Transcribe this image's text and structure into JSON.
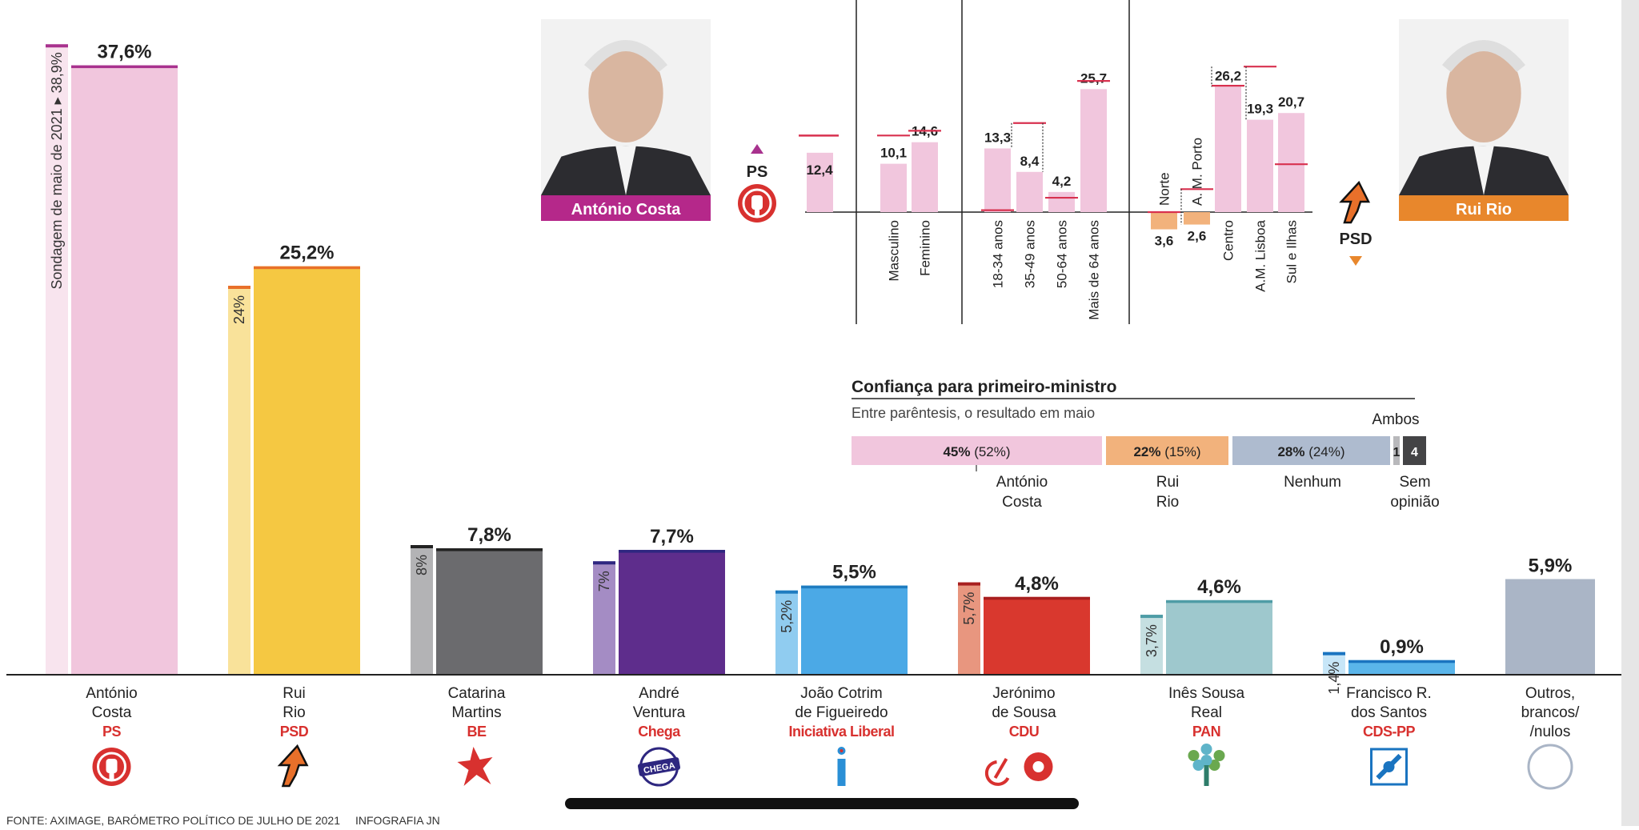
{
  "chart_data": [
    {
      "type": "bar",
      "categories": [
        "António Costa",
        "Rui Rio",
        "Catarina Martins",
        "André Ventura",
        "João Cotrim de Figueiredo",
        "Jerónimo de Sousa",
        "Inês Sousa Real",
        "Francisco R. dos Santos",
        "Outros, brancos/ /nulos"
      ],
      "series": [
        {
          "values": [
            37.6,
            25.2,
            7.8,
            7.7,
            5.5,
            4.8,
            4.6,
            0.9,
            5.9
          ]
        },
        {
          "values": [
            38.9,
            24,
            8,
            7,
            5.2,
            5.7,
            3.7,
            1.4,
            null
          ]
        }
      ],
      "value_labels": [
        "37,6%",
        "25,2%",
        "7,8%",
        "7,7%",
        "5,5%",
        "4,8%",
        "4,6%",
        "0,9%",
        "5,9%"
      ],
      "previous_labels": [
        "Sondagem de maio de 2021 ▸ 38,9%",
        "24%",
        "8%",
        "7%",
        "5,2%",
        "5,7%",
        "3,7%",
        "1,4%",
        ""
      ],
      "ylim": [
        0,
        40
      ],
      "candidates": [
        {
          "name": "António\nCosta",
          "party": "PS",
          "color": "#f1c6dd",
          "prev_color": "#f8e4ee",
          "line_color": "#a8328e",
          "logo": "ps-fist-icon"
        },
        {
          "name": "Rui\nRio",
          "party": "PSD",
          "color": "#f5c842",
          "prev_color": "#f9e29a",
          "line_color": "#e8702a",
          "logo": "psd-arrow-icon"
        },
        {
          "name": "Catarina\nMartins",
          "party": "BE",
          "color": "#6b6b6e",
          "prev_color": "#b3b3b5",
          "line_color": "#222222",
          "logo": "be-star-icon"
        },
        {
          "name": "André\nVentura",
          "party": "Chega",
          "color": "#5e2d8c",
          "prev_color": "#a48cc4",
          "line_color": "#2e2780",
          "logo": "chega-badge-icon"
        },
        {
          "name": "João Cotrim\nde Figueiredo",
          "party": "Iniciativa Liberal",
          "color": "#4ba9e6",
          "prev_color": "#90ccf0",
          "line_color": "#1f7cc0",
          "logo": "il-icon"
        },
        {
          "name": "Jerónimo\nde Sousa",
          "party": "CDU",
          "color": "#d9382e",
          "prev_color": "#e8967f",
          "line_color": "#a81f1f",
          "logo": "cdu-hammer-sickle-icon"
        },
        {
          "name": "Inês Sousa\nReal",
          "party": "PAN",
          "color": "#9ec8cd",
          "prev_color": "#c5dfe1",
          "line_color": "#4e9ca6",
          "logo": "pan-tree-icon"
        },
        {
          "name": "Francisco R.\ndos Santos",
          "party": "CDS-PP",
          "color": "#5ab5ea",
          "prev_color": "#c7e6f8",
          "line_color": "#1a74c0",
          "logo": "cds-icon"
        },
        {
          "name": "Outros,\nbrancos/\n/nulos",
          "party": "",
          "color": "#aab5c6",
          "prev_color": "#aab5c6",
          "line_color": "#aab5c6",
          "logo": "others-circle-icon"
        }
      ]
    },
    {
      "type": "bar",
      "categories": [
        "Masculino",
        "Feminino",
        "18-34 anos",
        "35-49 anos",
        "50-64 anos",
        "Mais de 64 anos",
        "Norte",
        "A. M. Porto",
        "Centro",
        "A.M. Lisboa",
        "Sul e Ilhas"
      ],
      "overall_value": 12.4,
      "values": [
        10.1,
        14.6,
        13.3,
        8.4,
        4.2,
        25.7,
        -3.6,
        -2.6,
        26.2,
        19.3,
        20.7
      ],
      "value_labels": [
        "10,1",
        "14,6",
        "13,3",
        "8,4",
        "4,2",
        "25,7",
        "3,6",
        "2,6",
        "26,2",
        "19,3",
        "20,7"
      ],
      "overall_label": "12,4",
      "left": {
        "party": "PS",
        "name": "António Costa",
        "photo": "antonio-costa-portrait"
      },
      "right": {
        "party": "PSD",
        "name": "Rui Rio",
        "photo": "rui-rio-portrait"
      }
    },
    {
      "type": "bar",
      "orientation": "horizontal-stacked",
      "title": "Confiança para primeiro-ministro",
      "subtitle": "Entre parêntesis, o resultado em maio",
      "segments": [
        {
          "label": "António\nCosta",
          "value": 45,
          "previous": 52,
          "text_main": "45%",
          "text_prev": " (52%)",
          "color": "#f1c6dd"
        },
        {
          "label": "Rui\nRio",
          "value": 22,
          "previous": 15,
          "text_main": "22%",
          "text_prev": " (15%)",
          "color": "#f2b27c"
        },
        {
          "label": "Nenhum",
          "value": 28,
          "previous": 24,
          "text_main": "28%",
          "text_prev": " (24%)",
          "color": "#aebbcf"
        },
        {
          "label": "Ambos",
          "value": 1,
          "text_main": "1",
          "color": "#b8b8bb"
        },
        {
          "label": "Sem\nopinião",
          "value": 4,
          "text_main": "4",
          "color": "#444446"
        }
      ]
    }
  ],
  "footer": {
    "source": "FONTE: AXIMAGE, BARÓMETRO POLÍTICO DE JULHO DE 2021",
    "credit": "INFOGRAFIA JN"
  },
  "colors": {
    "ps_accent": "#a8328e",
    "psd_accent": "#e8702a",
    "party_red": "#d8312f",
    "baseline": "#222222"
  }
}
